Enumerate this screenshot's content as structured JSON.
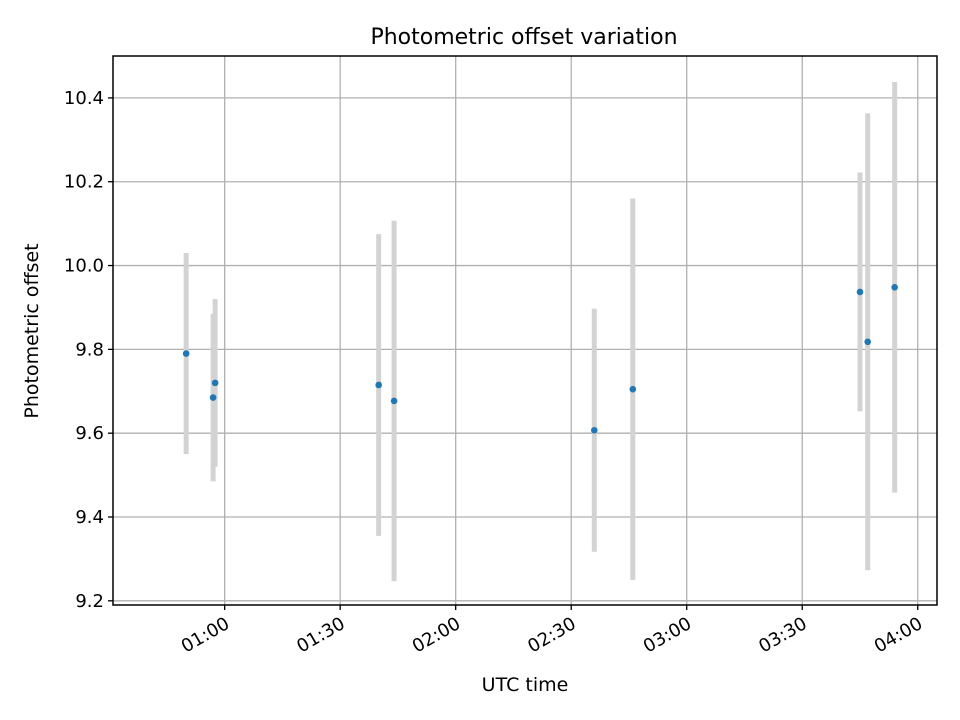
{
  "chart_data": {
    "type": "scatter",
    "title": "Photometric offset variation",
    "xlabel": "UTC time",
    "ylabel": "Photometric offset",
    "x_ticks": [
      "01:00",
      "01:30",
      "02:00",
      "02:30",
      "03:00",
      "03:30",
      "04:00"
    ],
    "y_ticks": [
      "9.2",
      "9.4",
      "9.6",
      "9.8",
      "10.0",
      "10.2",
      "10.4"
    ],
    "xlim": [
      "00:31",
      "04:05"
    ],
    "ylim": [
      9.19,
      10.5
    ],
    "grid": true,
    "colors": {
      "points": "#1f77b4",
      "errorbars": "#d3d3d3"
    },
    "series": [
      {
        "points": [
          {
            "x": "00:50",
            "y": 9.79,
            "yerr": 0.24
          },
          {
            "x": "00:57",
            "y": 9.685,
            "yerr": 0.2
          },
          {
            "x": "00:57",
            "y": 9.72,
            "yerr": 0.2
          },
          {
            "x": "01:40",
            "y": 9.715,
            "yerr": 0.36
          },
          {
            "x": "01:44",
            "y": 9.677,
            "yerr": 0.43
          },
          {
            "x": "02:36",
            "y": 9.607,
            "yerr": 0.29
          },
          {
            "x": "02:46",
            "y": 9.705,
            "yerr": 0.455
          },
          {
            "x": "03:45",
            "y": 9.937,
            "yerr": 0.285
          },
          {
            "x": "03:47",
            "y": 9.818,
            "yerr": 0.545
          },
          {
            "x": "03:54",
            "y": 9.948,
            "yerr": 0.49
          }
        ]
      }
    ]
  }
}
